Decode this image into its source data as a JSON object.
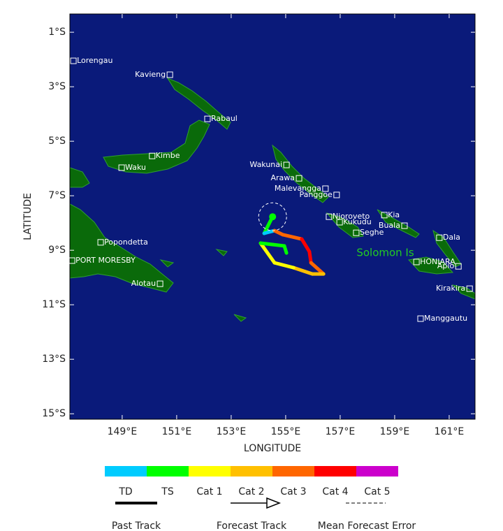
{
  "map": {
    "xlabel": "LONGITUDE",
    "ylabel": "LATITUDE",
    "xlim": [
      147.08,
      161.95
    ],
    "ylim": [
      -0.33,
      -15.2
    ],
    "xticks": [
      {
        "value": 149,
        "label": "149°E"
      },
      {
        "value": 151,
        "label": "151°E"
      },
      {
        "value": 153,
        "label": "153°E"
      },
      {
        "value": 155,
        "label": "155°E"
      },
      {
        "value": 157,
        "label": "157°E"
      },
      {
        "value": 159,
        "label": "159°E"
      },
      {
        "value": 161,
        "label": "161°E"
      }
    ],
    "yticks": [
      {
        "value": -1,
        "label": "1°S"
      },
      {
        "value": -3,
        "label": "3°S"
      },
      {
        "value": -5,
        "label": "5°S"
      },
      {
        "value": -7,
        "label": "7°S"
      },
      {
        "value": -9,
        "label": "9°S"
      },
      {
        "value": -11,
        "label": "11°S"
      },
      {
        "value": -13,
        "label": "13°S"
      },
      {
        "value": -15,
        "label": "15°S"
      }
    ],
    "ocean_color": "#0a1a7a",
    "places": [
      {
        "name": "Lorengau",
        "lon": 147.21,
        "lat": -2.05,
        "label": "right"
      },
      {
        "name": "Kavieng",
        "lon": 150.75,
        "lat": -2.56,
        "label": "left"
      },
      {
        "name": "Rabaul",
        "lon": 152.13,
        "lat": -4.18,
        "label": "right"
      },
      {
        "name": "Kimbe",
        "lon": 150.1,
        "lat": -5.54,
        "label": "right"
      },
      {
        "name": "Waku",
        "lon": 148.98,
        "lat": -5.97,
        "label": "right"
      },
      {
        "name": "Wakunai",
        "lon": 155.03,
        "lat": -5.87,
        "label": "left"
      },
      {
        "name": "Arawa",
        "lon": 155.49,
        "lat": -6.36,
        "label": "left"
      },
      {
        "name": "Malevangga",
        "lon": 156.46,
        "lat": -6.74,
        "label": "left"
      },
      {
        "name": "Panggoe",
        "lon": 156.87,
        "lat": -6.97,
        "label": "left"
      },
      {
        "name": "Njoroveto",
        "lon": 156.59,
        "lat": -7.77,
        "label": "right"
      },
      {
        "name": "Kukudu",
        "lon": 156.98,
        "lat": -7.97,
        "label": "right"
      },
      {
        "name": "Seghe",
        "lon": 157.59,
        "lat": -8.36,
        "label": "right"
      },
      {
        "name": "Kia",
        "lon": 158.62,
        "lat": -7.71,
        "label": "right"
      },
      {
        "name": "Buala",
        "lon": 159.36,
        "lat": -8.1,
        "label": "left"
      },
      {
        "name": "Dala",
        "lon": 160.64,
        "lat": -8.54,
        "label": "right"
      },
      {
        "name": "HONIARA",
        "lon": 159.8,
        "lat": -9.43,
        "label": "right"
      },
      {
        "name": "Apio",
        "lon": 161.34,
        "lat": -9.59,
        "label": "left"
      },
      {
        "name": "Kirakira",
        "lon": 161.75,
        "lat": -10.41,
        "label": "left"
      },
      {
        "name": "Manggautu",
        "lon": 159.95,
        "lat": -11.51,
        "label": "right"
      },
      {
        "name": "Popondetta",
        "lon": 148.21,
        "lat": -8.71,
        "label": "right"
      },
      {
        "name": "PORT MORESBY",
        "lon": 147.16,
        "lat": -9.38,
        "label": "right"
      },
      {
        "name": "Alotau",
        "lon": 150.39,
        "lat": -10.23,
        "label": "left"
      }
    ],
    "region_label": {
      "text": "Solomon Is",
      "lon": 157.6,
      "lat": -9.1,
      "color": "#22cc22"
    },
    "categories": [
      {
        "name": "TD",
        "color": "#00ccff"
      },
      {
        "name": "TS",
        "color": "#00ff00"
      },
      {
        "name": "Cat 1",
        "color": "#ffff00"
      },
      {
        "name": "Cat 2",
        "color": "#ffc000"
      },
      {
        "name": "Cat 3",
        "color": "#ff6600"
      },
      {
        "name": "Cat 4",
        "color": "#ff0000"
      },
      {
        "name": "Cat 5",
        "color": "#cc00cc"
      }
    ],
    "current_position": {
      "lon": 154.52,
      "lat": -7.77,
      "category": 1
    },
    "forecast_track": [
      {
        "lon": 154.52,
        "lat": -7.77,
        "category": 1
      },
      {
        "lon": 154.21,
        "lat": -8.38,
        "category": 1
      },
      {
        "lon": 154.59,
        "lat": -8.28,
        "category": 0
      },
      {
        "lon": 154.9,
        "lat": -8.43,
        "category": 4
      },
      {
        "lon": 155.59,
        "lat": -8.59,
        "category": 4
      },
      {
        "lon": 155.87,
        "lat": -9.05,
        "category": 5
      },
      {
        "lon": 155.93,
        "lat": -9.46,
        "category": 5
      },
      {
        "lon": 156.39,
        "lat": -9.87,
        "category": 4
      },
      {
        "lon": 155.98,
        "lat": -9.87,
        "category": 3
      },
      {
        "lon": 155.29,
        "lat": -9.64,
        "category": 3
      },
      {
        "lon": 154.59,
        "lat": -9.46,
        "category": 2
      },
      {
        "lon": 154.08,
        "lat": -8.74,
        "category": 2
      },
      {
        "lon": 154.52,
        "lat": -8.79,
        "category": 1
      },
      {
        "lon": 154.95,
        "lat": -8.84,
        "category": 1
      },
      {
        "lon": 155.03,
        "lat": -9.1,
        "category": 1
      }
    ],
    "legend": {
      "past_track": "Past Track",
      "forecast_track": "Forecast Track",
      "mean_error": "Mean Forecast Error"
    }
  }
}
